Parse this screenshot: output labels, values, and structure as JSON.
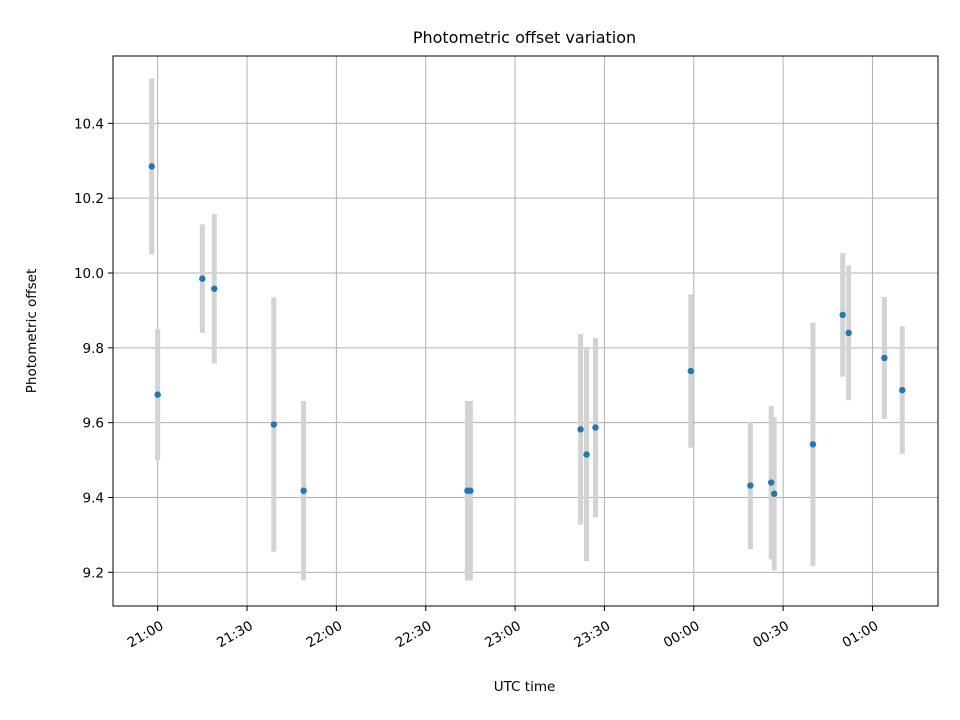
{
  "chart_data": {
    "type": "scatter",
    "title": "Photometric offset variation",
    "xlabel": "UTC time",
    "ylabel": "Photometric offset",
    "xlim": [
      "20:45",
      "25:22"
    ],
    "ylim": [
      9.11,
      10.58
    ],
    "x_ticks": [
      {
        "value": "21:00",
        "label": "21:00"
      },
      {
        "value": "21:30",
        "label": "21:30"
      },
      {
        "value": "22:00",
        "label": "22:00"
      },
      {
        "value": "22:30",
        "label": "22:30"
      },
      {
        "value": "23:00",
        "label": "23:00"
      },
      {
        "value": "23:30",
        "label": "23:30"
      },
      {
        "value": "24:00",
        "label": "00:00"
      },
      {
        "value": "24:30",
        "label": "00:30"
      },
      {
        "value": "25:00",
        "label": "01:00"
      }
    ],
    "y_ticks": [
      9.2,
      9.4,
      9.6,
      9.8,
      10.0,
      10.2,
      10.4
    ],
    "grid": true,
    "marker_color": "#1f77b4",
    "errorbar_color": "#d3d3d3",
    "points": [
      {
        "x": "20:58",
        "y": 10.285,
        "err": 0.235
      },
      {
        "x": "21:00",
        "y": 9.675,
        "err": 0.175
      },
      {
        "x": "21:15",
        "y": 9.985,
        "err": 0.145
      },
      {
        "x": "21:19",
        "y": 9.958,
        "err": 0.2
      },
      {
        "x": "21:39",
        "y": 9.595,
        "err": 0.34
      },
      {
        "x": "21:49",
        "y": 9.418,
        "err": 0.24
      },
      {
        "x": "22:44",
        "y": 9.418,
        "err": 0.24
      },
      {
        "x": "22:45",
        "y": 9.418,
        "err": 0.24
      },
      {
        "x": "23:22",
        "y": 9.582,
        "err": 0.255
      },
      {
        "x": "23:24",
        "y": 9.515,
        "err": 0.285
      },
      {
        "x": "23:27",
        "y": 9.587,
        "err": 0.24
      },
      {
        "x": "23:59",
        "y": 9.738,
        "err": 0.205
      },
      {
        "x": "24:19",
        "y": 9.432,
        "err": 0.17
      },
      {
        "x": "24:26",
        "y": 9.44,
        "err": 0.205
      },
      {
        "x": "24:27",
        "y": 9.41,
        "err": 0.205
      },
      {
        "x": "24:40",
        "y": 9.542,
        "err": 0.325
      },
      {
        "x": "24:50",
        "y": 9.888,
        "err": 0.165
      },
      {
        "x": "24:52",
        "y": 9.84,
        "err": 0.18
      },
      {
        "x": "25:04",
        "y": 9.773,
        "err": 0.163
      },
      {
        "x": "25:10",
        "y": 9.687,
        "err": 0.17
      }
    ]
  }
}
